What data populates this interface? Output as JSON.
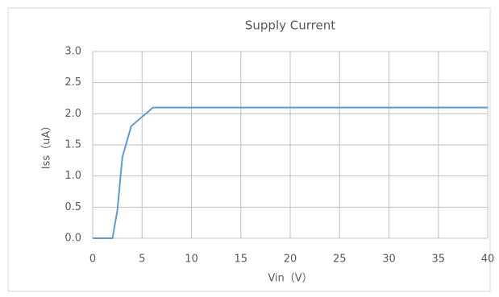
{
  "chart_data": {
    "type": "line",
    "title": "Supply Current",
    "x_label": "Vin（V）",
    "y_label": "Iss（uA）",
    "x": [
      0,
      2,
      2.5,
      3,
      3.9,
      6.1,
      40
    ],
    "series": [
      {
        "name": "Iss",
        "color": "#5b9bd5",
        "values": [
          0,
          0,
          0.45,
          1.3,
          1.8,
          2.1,
          2.1
        ]
      }
    ],
    "xlim": [
      0,
      40
    ],
    "xticks": [
      0,
      5,
      10,
      15,
      20,
      25,
      30,
      35,
      40
    ],
    "ylim": [
      0,
      3
    ],
    "yticks": [
      {
        "value": 0,
        "label": "0.0"
      },
      0.5,
      {
        "value": 1,
        "label": "1.0"
      },
      1.5,
      {
        "value": 2,
        "label": "2.0"
      },
      2.5,
      {
        "value": 3,
        "label": "3.0"
      }
    ],
    "grid": true
  }
}
